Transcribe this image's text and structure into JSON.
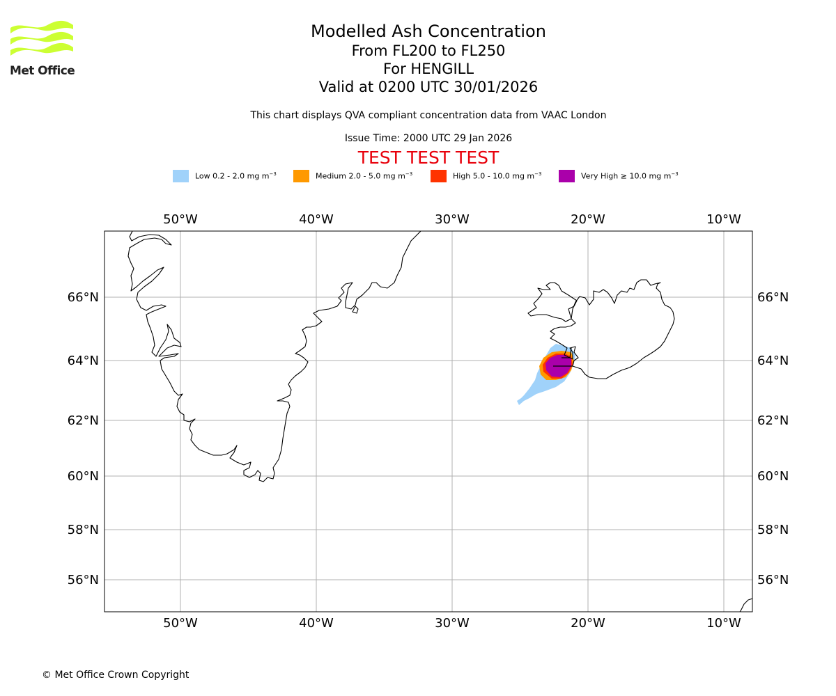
{
  "logo": {
    "text": "Met Office",
    "stripe_color": "#ccff33"
  },
  "title": {
    "line1": "Modelled Ash Concentration",
    "line2": "From FL200 to FL250",
    "line3": "For HENGILL",
    "line4": "Valid at 0200 UTC 30/01/2026"
  },
  "subtitle": "This chart displays QVA compliant concentration data from VAAC London",
  "issue_time": "Issue Time: 2000 UTC 29 Jan 2026",
  "test_banner": "TEST TEST TEST",
  "legend": [
    {
      "label": "Low 0.2 - 2.0 mg m",
      "unit_exp": "−3",
      "color": "#a0d2fa"
    },
    {
      "label": "Medium 2.0 - 5.0 mg m",
      "unit_exp": "−3",
      "color": "#ff9900"
    },
    {
      "label": "High 5.0 - 10.0 mg m",
      "unit_exp": "−3",
      "color": "#ff3300"
    },
    {
      "label": "Very High  ≥  10.0 mg m",
      "unit_exp": "−3",
      "color": "#aa00aa"
    }
  ],
  "map": {
    "longitude_ticks": [
      "50°W",
      "40°W",
      "30°W",
      "20°W",
      "10°W"
    ],
    "latitude_ticks": [
      "66°N",
      "64°N",
      "62°N",
      "60°N",
      "58°N",
      "56°N"
    ],
    "grid_color": "#b0b0b0",
    "coast_color": "#000000"
  },
  "copyright": "© Met Office Crown Copyright"
}
